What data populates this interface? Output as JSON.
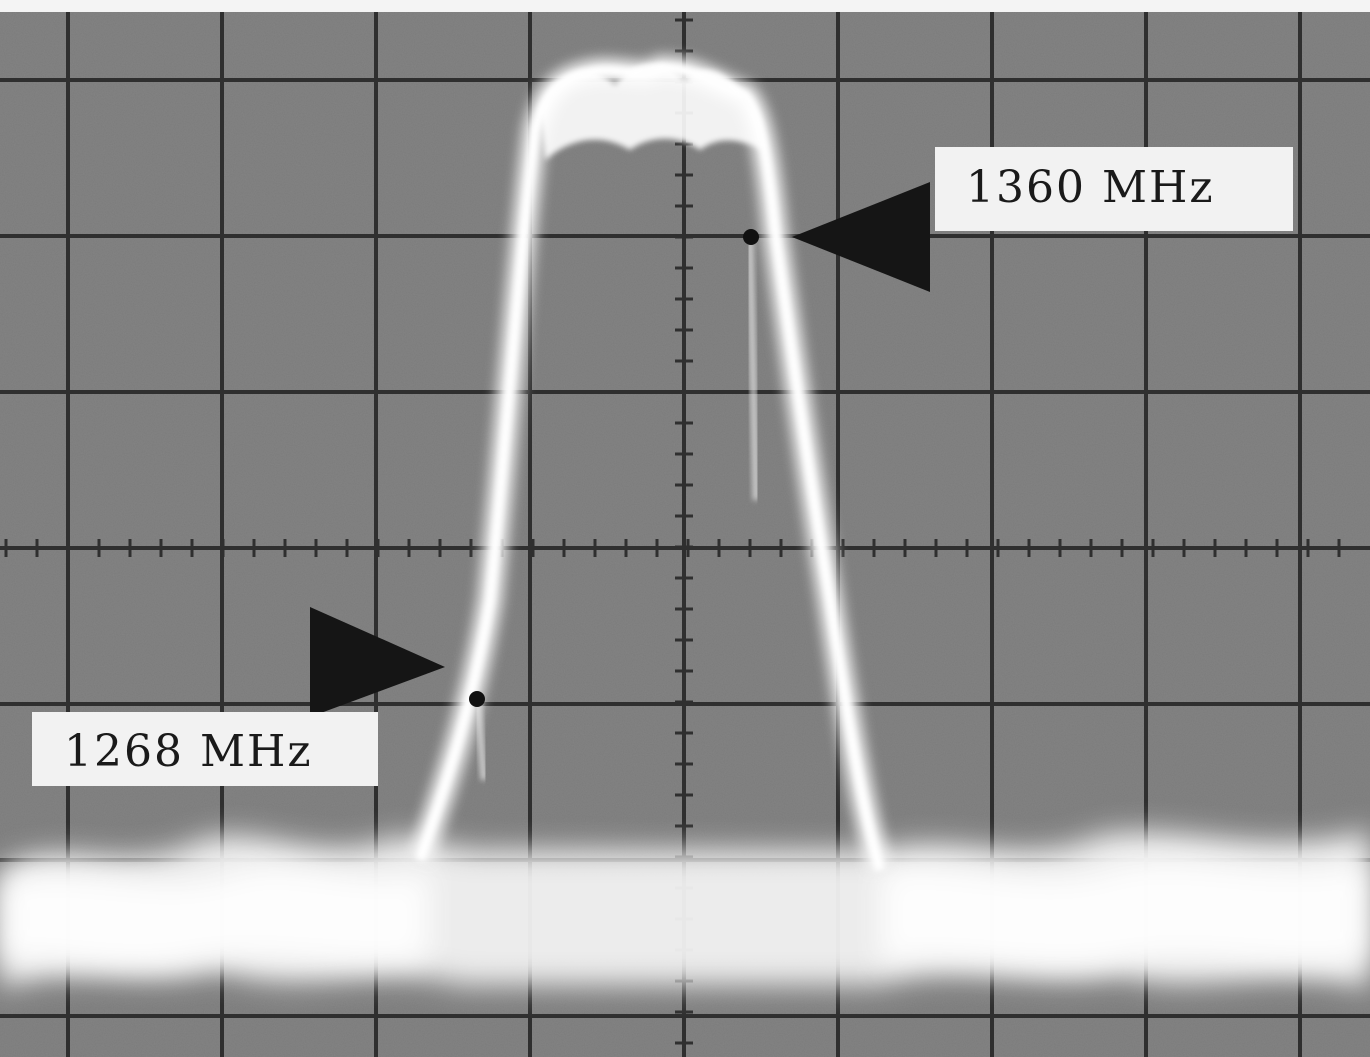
{
  "markers": {
    "upper": {
      "label": "1360 MHz"
    },
    "lower": {
      "label": "1268 MHz"
    }
  },
  "colors": {
    "screen": "#7d7d7d",
    "grid": "#2e2e2e",
    "trace": "#f4f4f4",
    "label_bg": "#f2f2f2",
    "arrow": "#151515"
  }
}
